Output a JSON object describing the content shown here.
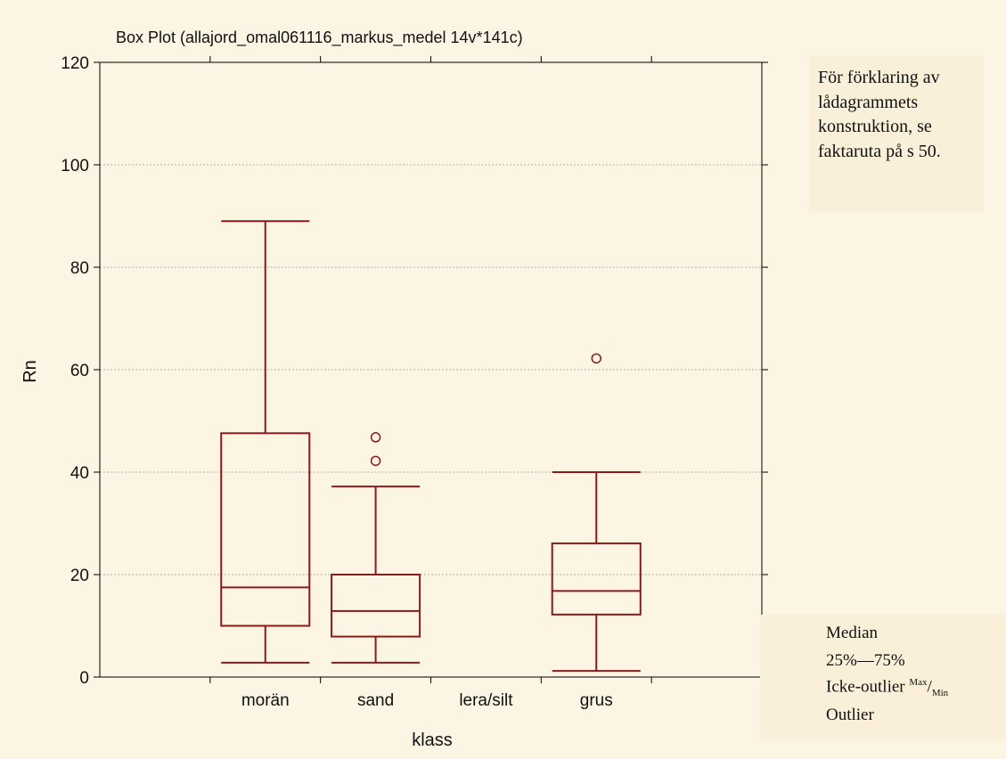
{
  "chart_data": {
    "type": "box",
    "title": "Box Plot (allajord_omal061116_markus_medel 14v*141c)",
    "xlabel": "klass",
    "ylabel": "Rn",
    "ylim": [
      0,
      120
    ],
    "yticks": [
      "0",
      "20",
      "40",
      "60",
      "80",
      "100",
      "120"
    ],
    "grid": true,
    "categories": [
      "morän",
      "sand",
      "lera/silt",
      "grus"
    ],
    "boxes": [
      {
        "category": "morän",
        "min": 2.8,
        "q1": 10.0,
        "median": 17.5,
        "q3": 47.6,
        "max": 89.0,
        "outliers": []
      },
      {
        "category": "sand",
        "min": 2.8,
        "q1": 7.9,
        "median": 12.9,
        "q3": 20.0,
        "max": 37.2,
        "outliers": [
          42.2,
          46.8
        ]
      },
      {
        "category": "lera/silt",
        "min": null,
        "q1": null,
        "median": null,
        "q3": null,
        "max": null,
        "outliers": []
      },
      {
        "category": "grus",
        "min": 1.2,
        "q1": 12.2,
        "median": 16.8,
        "q3": 26.1,
        "max": 40.0,
        "outliers": [
          62.2
        ]
      }
    ],
    "colors": {
      "box": "#8b1a1a",
      "frame": "#000000",
      "grid": "#b0b0b0",
      "background": "#fcf5e4"
    },
    "legend_placement": "bottom-right"
  },
  "note": {
    "lines": [
      "För förklaring av",
      "lådagrammets",
      "konstruktion, se",
      "faktaruta på s 50."
    ]
  },
  "legend": {
    "median": "Median",
    "box": "25%—75%",
    "whisker": "Icke-outlier",
    "whisker_sup": "Max",
    "whisker_sep": "/",
    "whisker_sub": "Min",
    "outlier": "Outlier"
  }
}
